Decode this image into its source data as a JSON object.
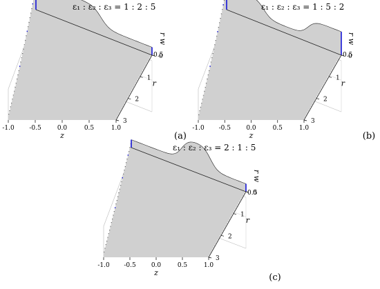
{
  "chart_data": [
    {
      "type": "area",
      "panel_label": "(a)",
      "title": "ε₁ : ε₂ : ε₃ = 1 : 2 : 5",
      "xlabel": "z",
      "ylabel": "r",
      "zlabel": "r w",
      "xlim": [
        -1.0,
        1.0
      ],
      "ylim": [
        0,
        3
      ],
      "zlim": [
        0,
        0.8
      ],
      "x_ticks": [
        "-1.0",
        "-0.5",
        "0.0",
        "0.5",
        "1.0"
      ],
      "y_ticks": [
        "0",
        "1",
        "2",
        "3"
      ],
      "z_ticks": [
        "0.5"
      ],
      "grid": true,
      "profile_shape": "decreasing step near z = 0.1",
      "highlight_color": "#1515d8"
    },
    {
      "type": "area",
      "panel_label": "(b)",
      "title": "ε₁ : ε₂ : ε₃ = 1 : 5 : 2",
      "xlabel": "z",
      "ylabel": "r",
      "zlabel": "r w",
      "xlim": [
        -1.0,
        1.0
      ],
      "ylim": [
        0,
        3
      ],
      "zlim": [
        0,
        0.8
      ],
      "x_ticks": [
        "-1.0",
        "-0.5",
        "0.0",
        "0.5",
        "1.0"
      ],
      "y_ticks": [
        "0",
        "1",
        "2",
        "3"
      ],
      "z_ticks": [
        "0.5"
      ],
      "grid": true,
      "profile_shape": "dip in middle layer",
      "highlight_color": "#1515d8"
    },
    {
      "type": "area",
      "panel_label": "(c)",
      "title": "ε₁ : ε₂ : ε₃ = 2 : 1 : 5",
      "xlabel": "z",
      "ylabel": "r",
      "zlabel": "r w",
      "xlim": [
        -1.0,
        1.0
      ],
      "ylim": [
        0,
        3
      ],
      "zlim": [
        0,
        0.8
      ],
      "x_ticks": [
        "-1.0",
        "-0.5",
        "0.0",
        "0.5",
        "1.0"
      ],
      "y_ticks": [
        "0",
        "1",
        "2",
        "3"
      ],
      "z_ticks": [
        "0.5"
      ],
      "grid": true,
      "profile_shape": "peak in middle layer",
      "highlight_color": "#1515d8"
    }
  ]
}
